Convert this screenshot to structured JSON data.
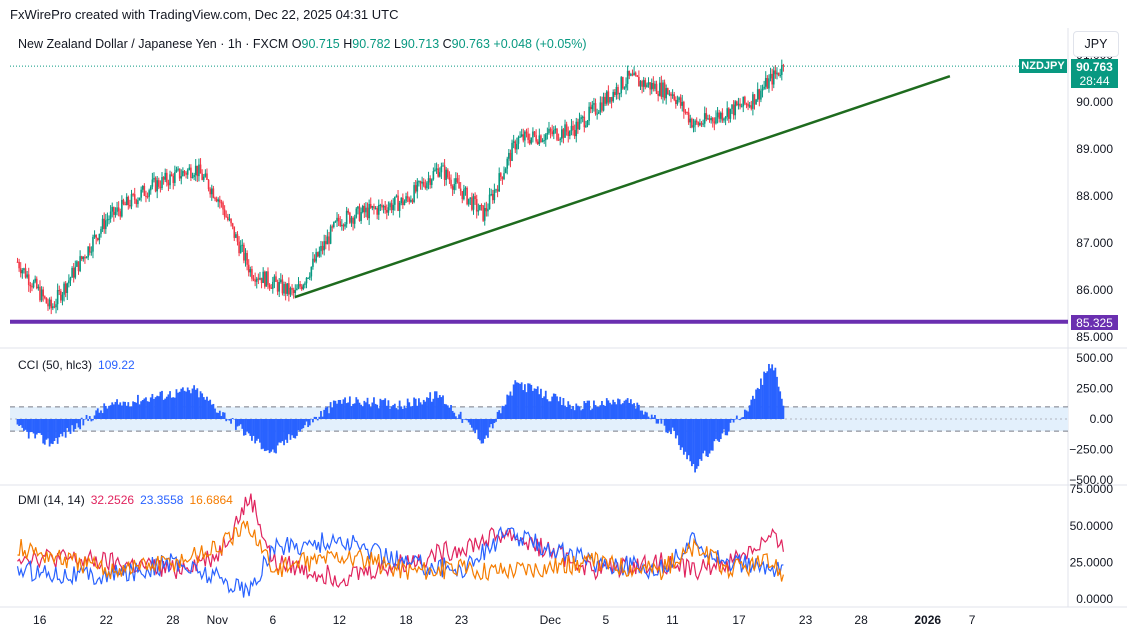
{
  "header": {
    "publisher_line": "FxWirePro created with TradingView.com, Dec 22, 2025 04:31 UTC",
    "symbol_desc": "New Zealand Dollar / Japanese Yen · 1h · FXCM",
    "o_label": "O",
    "o": "90.715",
    "h_label": "H",
    "h": "90.782",
    "l_label": "L",
    "l": "90.713",
    "c_label": "C",
    "c": "90.763",
    "change": "+0.048 (+0.05%)",
    "currency": "JPY"
  },
  "price_axis": {
    "ticks": [
      "91.000",
      "90.000",
      "89.000",
      "88.000",
      "87.000",
      "86.000",
      "85.000"
    ],
    "ticks_values": [
      91,
      90,
      89,
      88,
      87,
      86,
      85
    ],
    "last_price_label": "90.763",
    "countdown": "28:44",
    "ticker_badge": "NZDJPY",
    "support_label": "85.325"
  },
  "cci_panel": {
    "name": "CCI (50, hlc3)",
    "value": "109.22",
    "ticks": [
      "500.00",
      "250.00",
      "0.00",
      "−250.00",
      "−500.00"
    ]
  },
  "dmi_panel": {
    "name": "DMI (14, 14)",
    "plus_di": "32.2526",
    "minus_di": "23.3558",
    "adx": "16.6864",
    "ticks": [
      "75.0000",
      "50.0000",
      "25.0000",
      "0.0000"
    ]
  },
  "time_axis": {
    "labels": [
      "16",
      "22",
      "28",
      "Nov",
      "6",
      "12",
      "18",
      "23",
      "Dec",
      "5",
      "11",
      "17",
      "23",
      "28",
      "2026",
      "7"
    ]
  },
  "colors": {
    "up": "#089981",
    "down": "#f23645",
    "trendline": "#1e6b1e",
    "support_line": "#6a2fb0",
    "cci_fill": "#2962ff",
    "cci_band": "#e3f0fc",
    "plus_di": "#e0245e",
    "minus_di": "#2962ff",
    "adx": "#f57c00",
    "badge_bg": "#089981"
  },
  "chart_data": [
    {
      "type": "candlestick",
      "title": "New Zealand Dollar / Japanese Yen · 1h · FXCM",
      "x_range": [
        "Oct 14, 2025",
        "Dec 22, 2025"
      ],
      "ylim": [
        84.7,
        91.5
      ],
      "key_closes": [
        {
          "x": "Oct 14",
          "y": 86.6
        },
        {
          "x": "Oct 17",
          "y": 85.6
        },
        {
          "x": "Oct 22",
          "y": 87.5
        },
        {
          "x": "Oct 26",
          "y": 88.2
        },
        {
          "x": "Oct 30",
          "y": 88.6
        },
        {
          "x": "Nov 1",
          "y": 88.0
        },
        {
          "x": "Nov 4",
          "y": 86.4
        },
        {
          "x": "Nov 8",
          "y": 85.9
        },
        {
          "x": "Nov 12",
          "y": 87.5
        },
        {
          "x": "Nov 18",
          "y": 87.9
        },
        {
          "x": "Nov 21",
          "y": 88.6
        },
        {
          "x": "Nov 25",
          "y": 87.6
        },
        {
          "x": "Nov 28",
          "y": 89.2
        },
        {
          "x": "Dec 3",
          "y": 89.4
        },
        {
          "x": "Dec 8",
          "y": 90.5
        },
        {
          "x": "Dec 12",
          "y": 90.2
        },
        {
          "x": "Dec 14",
          "y": 89.5
        },
        {
          "x": "Dec 19",
          "y": 90.0
        },
        {
          "x": "Dec 22",
          "y": 90.763
        }
      ],
      "trendline": {
        "from": {
          "x": "Nov 8",
          "y": 85.85
        },
        "to": {
          "x": "Jan 6",
          "y": 90.55
        }
      },
      "horizontal_line": 85.325,
      "last_price": 90.763
    },
    {
      "type": "histogram",
      "title": "CCI (50, hlc3)",
      "ylim": [
        -500,
        500
      ],
      "bands": [
        -100,
        100
      ],
      "last_value": 109.22,
      "x": [
        "Oct 14",
        "Oct 17",
        "Oct 22",
        "Oct 26",
        "Oct 30",
        "Nov 4",
        "Nov 6",
        "Nov 8",
        "Nov 12",
        "Nov 18",
        "Nov 21",
        "Nov 25",
        "Nov 28",
        "Dec 3",
        "Dec 8",
        "Dec 12",
        "Dec 14",
        "Dec 19",
        "Dec 21",
        "Dec 22"
      ],
      "values": [
        -80,
        -200,
        100,
        180,
        240,
        -150,
        -280,
        -120,
        150,
        120,
        200,
        -180,
        300,
        100,
        150,
        -100,
        -400,
        120,
        480,
        109
      ]
    },
    {
      "type": "line",
      "title": "DMI (14, 14)",
      "ylim": [
        0,
        75
      ],
      "x": [
        "Oct 14",
        "Oct 22",
        "Oct 28",
        "Nov 1",
        "Nov 4",
        "Nov 6",
        "Nov 12",
        "Nov 18",
        "Nov 23",
        "Nov 27",
        "Dec 5",
        "Dec 11",
        "Dec 14",
        "Dec 17",
        "Dec 21",
        "Dec 22"
      ],
      "series": [
        {
          "name": "32.2526",
          "values": [
            30,
            25,
            20,
            30,
            70,
            25,
            15,
            25,
            35,
            45,
            20,
            25,
            20,
            25,
            42,
            32.25
          ]
        },
        {
          "name": "23.3558",
          "values": [
            20,
            15,
            25,
            15,
            5,
            35,
            40,
            25,
            20,
            45,
            25,
            20,
            40,
            25,
            20,
            23.36
          ]
        },
        {
          "name": "16.6864",
          "values": [
            35,
            20,
            25,
            35,
            50,
            20,
            30,
            20,
            20,
            20,
            25,
            20,
            35,
            20,
            25,
            16.69
          ]
        }
      ]
    }
  ]
}
